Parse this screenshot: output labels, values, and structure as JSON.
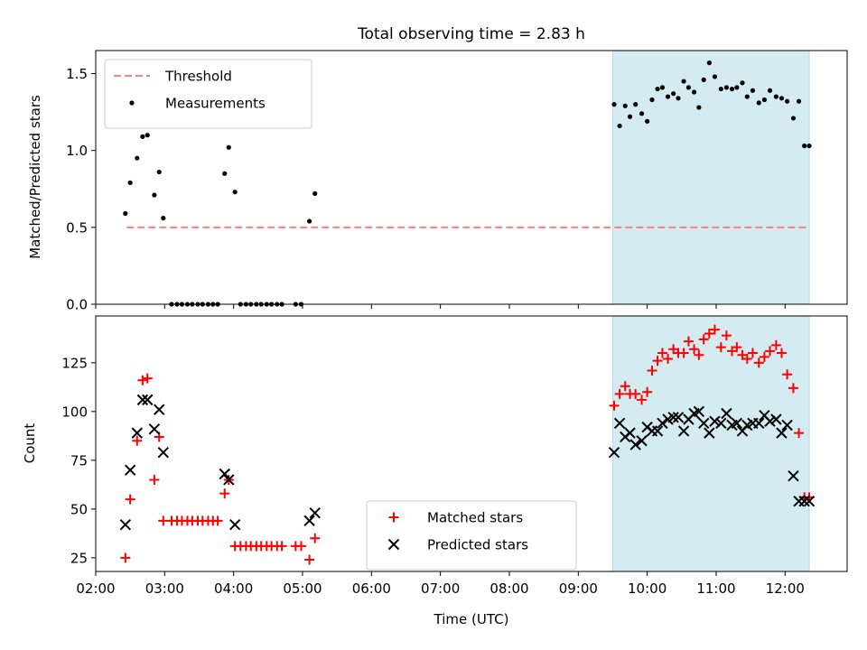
{
  "chart_data": [
    {
      "type": "scatter",
      "title": "Total observing time = 2.83 h",
      "xlabel": "",
      "ylabel": "Matched/Predicted stars",
      "x_unit": "hours UTC",
      "xlim": [
        2.0,
        12.9
      ],
      "ylim": [
        0,
        1.65
      ],
      "yticks": [
        0.0,
        0.5,
        1.0,
        1.5
      ],
      "ytick_labels": [
        "0.0",
        "0.5",
        "1.0",
        "1.5"
      ],
      "legend_position": "upper-left",
      "shaded_span": [
        9.5,
        12.35
      ],
      "shade_color": "#d4ebf2",
      "threshold": {
        "name": "Threshold",
        "value": 0.5,
        "x_range": [
          2.45,
          12.35
        ],
        "color": "#ff7f7f"
      },
      "series": [
        {
          "name": "Measurements",
          "color": "#000000",
          "marker": "dot",
          "x": [
            2.43,
            2.5,
            2.6,
            2.68,
            2.75,
            2.85,
            2.92,
            2.98,
            3.1,
            3.18,
            3.25,
            3.33,
            3.4,
            3.48,
            3.55,
            3.63,
            3.7,
            3.77,
            3.87,
            3.93,
            4.02,
            4.1,
            4.18,
            4.25,
            4.33,
            4.4,
            4.48,
            4.55,
            4.63,
            4.7,
            4.9,
            4.98,
            5.1,
            5.18,
            9.52,
            9.6,
            9.68,
            9.75,
            9.83,
            9.92,
            10.0,
            10.07,
            10.15,
            10.22,
            10.3,
            10.38,
            10.45,
            10.53,
            10.6,
            10.68,
            10.75,
            10.82,
            10.9,
            10.98,
            11.07,
            11.15,
            11.23,
            11.3,
            11.38,
            11.45,
            11.53,
            11.62,
            11.7,
            11.78,
            11.87,
            11.95,
            12.03,
            12.12,
            12.2,
            12.28,
            12.35
          ],
          "y": [
            0.59,
            0.79,
            0.95,
            1.09,
            1.1,
            0.71,
            0.86,
            0.56,
            0.0,
            0.0,
            0.0,
            0.0,
            0.0,
            0.0,
            0.0,
            0.0,
            0.0,
            0.0,
            0.85,
            1.02,
            0.73,
            0.0,
            0.0,
            0.0,
            0.0,
            0.0,
            0.0,
            0.0,
            0.0,
            0.0,
            0.0,
            0.0,
            0.54,
            0.72,
            1.3,
            1.16,
            1.29,
            1.22,
            1.3,
            1.24,
            1.19,
            1.33,
            1.4,
            1.41,
            1.35,
            1.37,
            1.34,
            1.45,
            1.41,
            1.38,
            1.28,
            1.46,
            1.57,
            1.48,
            1.4,
            1.41,
            1.4,
            1.41,
            1.44,
            1.35,
            1.39,
            1.31,
            1.33,
            1.39,
            1.35,
            1.34,
            1.32,
            1.21,
            1.32,
            1.03,
            1.03
          ]
        }
      ]
    },
    {
      "type": "scatter",
      "title": "",
      "xlabel": "Time (UTC)",
      "ylabel": "Count",
      "x_unit": "hours UTC",
      "xlim": [
        2.0,
        12.9
      ],
      "ylim": [
        18,
        149
      ],
      "yticks": [
        25,
        50,
        75,
        100,
        125
      ],
      "ytick_labels": [
        "25",
        "50",
        "75",
        "100",
        "125"
      ],
      "xticks": [
        2,
        3,
        4,
        5,
        6,
        7,
        8,
        9,
        10,
        11,
        12
      ],
      "xtick_labels": [
        "02:00",
        "03:00",
        "04:00",
        "05:00",
        "06:00",
        "07:00",
        "08:00",
        "09:00",
        "10:00",
        "11:00",
        "12:00"
      ],
      "legend_position": "lower-center",
      "shaded_span": [
        9.5,
        12.35
      ],
      "shade_color": "#d4ebf2",
      "series": [
        {
          "name": "Matched stars",
          "color": "#ff0000",
          "marker": "plus",
          "x": [
            2.43,
            2.5,
            2.6,
            2.68,
            2.75,
            2.85,
            2.92,
            2.98,
            3.1,
            3.18,
            3.25,
            3.33,
            3.4,
            3.48,
            3.55,
            3.63,
            3.7,
            3.77,
            3.87,
            3.93,
            4.02,
            4.1,
            4.18,
            4.25,
            4.33,
            4.4,
            4.48,
            4.55,
            4.63,
            4.7,
            4.9,
            4.98,
            5.1,
            5.18,
            9.52,
            9.6,
            9.68,
            9.75,
            9.83,
            9.92,
            10.0,
            10.07,
            10.15,
            10.22,
            10.3,
            10.38,
            10.45,
            10.53,
            10.6,
            10.68,
            10.75,
            10.82,
            10.9,
            10.98,
            11.07,
            11.15,
            11.23,
            11.3,
            11.38,
            11.45,
            11.53,
            11.62,
            11.7,
            11.78,
            11.87,
            11.95,
            12.03,
            12.12,
            12.2,
            12.28,
            12.35
          ],
          "y": [
            25,
            55,
            85,
            116,
            117,
            65,
            87,
            44,
            44,
            44,
            44,
            44,
            44,
            44,
            44,
            44,
            44,
            44,
            58,
            65,
            31,
            31,
            31,
            31,
            31,
            31,
            31,
            31,
            31,
            31,
            31,
            31,
            24,
            35,
            103,
            109,
            113,
            109,
            109,
            106,
            110,
            121,
            126,
            130,
            127,
            132,
            130,
            130,
            136,
            132,
            129,
            137,
            140,
            142,
            133,
            139,
            131,
            133,
            129,
            127,
            130,
            125,
            128,
            131,
            134,
            130,
            119,
            112,
            89,
            56,
            56
          ]
        },
        {
          "name": "Predicted stars",
          "color": "#000000",
          "marker": "x",
          "x": [
            2.43,
            2.5,
            2.6,
            2.68,
            2.75,
            2.85,
            2.92,
            2.98,
            3.87,
            3.93,
            4.02,
            5.1,
            5.18,
            9.52,
            9.6,
            9.68,
            9.75,
            9.83,
            9.92,
            10.0,
            10.07,
            10.15,
            10.22,
            10.3,
            10.38,
            10.45,
            10.53,
            10.6,
            10.68,
            10.75,
            10.82,
            10.9,
            10.98,
            11.07,
            11.15,
            11.23,
            11.3,
            11.38,
            11.45,
            11.53,
            11.62,
            11.7,
            11.78,
            11.87,
            11.95,
            12.03,
            12.12,
            12.2,
            12.28,
            12.35
          ],
          "y": [
            42,
            70,
            89,
            106,
            106,
            91,
            101,
            79,
            68,
            65,
            42,
            44,
            48,
            79,
            94,
            87,
            89,
            83,
            85,
            92,
            90,
            90,
            94,
            96,
            97,
            97,
            90,
            96,
            99,
            100,
            94,
            89,
            95,
            94,
            99,
            93,
            94,
            90,
            93,
            94,
            94,
            98,
            95,
            96,
            89,
            93,
            67,
            54,
            54,
            54
          ]
        }
      ]
    }
  ]
}
